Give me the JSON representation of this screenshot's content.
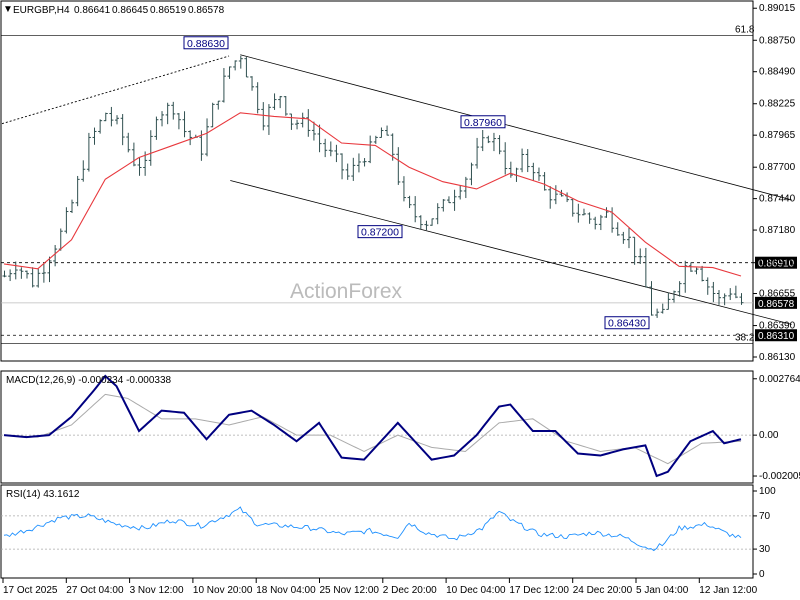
{
  "header": {
    "symbol": "EURGBP,H4",
    "open": "0.86641",
    "high": "0.86645",
    "low": "0.86519",
    "close": "0.86578"
  },
  "watermark": "ActionForex",
  "colors": {
    "candle": "#2f4f4f",
    "ma": "#e8383d",
    "macd": "#000080",
    "signal": "#aaaaaa",
    "rsi": "#1e90ff",
    "label_border": "#000080"
  },
  "chart_data": [
    {
      "type": "candlestick",
      "panel": "price",
      "symbol": "EURGBP,H4",
      "ylim": [
        0.8613,
        0.8905
      ],
      "y_ticks": [
        "0.89015",
        "0.88750",
        "0.88490",
        "0.88225",
        "0.87965",
        "0.87700",
        "0.87440",
        "0.87180",
        "0.86910",
        "0.86655",
        "0.86390",
        "0.86130"
      ],
      "x_ticks": [
        "17 Oct 2025",
        "27 Oct 04:00",
        "3 Nov 12:00",
        "10 Nov 20:00",
        "18 Nov 04:00",
        "25 Nov 12:00",
        "2 Dec 20:00",
        "10 Dec 04:00",
        "17 Dec 12:00",
        "24 Dec 20:00",
        "5 Jan 04:00",
        "12 Jan 12:00"
      ],
      "series_path": [
        [
          0,
          0.868
        ],
        [
          2,
          0.869
        ],
        [
          5,
          0.8675
        ],
        [
          7,
          0.8688
        ],
        [
          10,
          0.8715
        ],
        [
          12,
          0.874
        ],
        [
          15,
          0.879
        ],
        [
          18,
          0.8815
        ],
        [
          20,
          0.8805
        ],
        [
          23,
          0.8775
        ],
        [
          25,
          0.877
        ],
        [
          27,
          0.8815
        ],
        [
          30,
          0.882
        ],
        [
          32,
          0.88
        ],
        [
          35,
          0.8785
        ],
        [
          37,
          0.8818
        ],
        [
          40,
          0.8853
        ],
        [
          42,
          0.8863
        ],
        [
          44,
          0.8835
        ],
        [
          46,
          0.881
        ],
        [
          49,
          0.883
        ],
        [
          51,
          0.8808
        ],
        [
          54,
          0.8805
        ],
        [
          56,
          0.879
        ],
        [
          59,
          0.8775
        ],
        [
          61,
          0.8762
        ],
        [
          63,
          0.8775
        ],
        [
          65,
          0.8785
        ],
        [
          67,
          0.88
        ],
        [
          69,
          0.8782
        ],
        [
          71,
          0.874
        ],
        [
          73,
          0.873
        ],
        [
          75,
          0.8725
        ],
        [
          78,
          0.8738
        ],
        [
          80,
          0.875
        ],
        [
          82,
          0.8762
        ],
        [
          84,
          0.8782
        ],
        [
          86,
          0.8796
        ],
        [
          88,
          0.8786
        ],
        [
          90,
          0.876
        ],
        [
          92,
          0.8775
        ],
        [
          94,
          0.877
        ],
        [
          96,
          0.875
        ],
        [
          99,
          0.8742
        ],
        [
          101,
          0.8735
        ],
        [
          103,
          0.873
        ],
        [
          105,
          0.8725
        ],
        [
          107,
          0.8731
        ],
        [
          109,
          0.872
        ],
        [
          111,
          0.871
        ],
        [
          113,
          0.869
        ],
        [
          115,
          0.865
        ],
        [
          117,
          0.8647
        ],
        [
          119,
          0.867
        ],
        [
          121,
          0.8688
        ],
        [
          123,
          0.869
        ],
        [
          125,
          0.8672
        ],
        [
          127,
          0.866
        ],
        [
          129,
          0.8668
        ],
        [
          131,
          0.8658
        ]
      ],
      "moving_average": [
        [
          0,
          0.869
        ],
        [
          6,
          0.8686
        ],
        [
          12,
          0.871
        ],
        [
          18,
          0.876
        ],
        [
          24,
          0.8778
        ],
        [
          30,
          0.8788
        ],
        [
          36,
          0.8798
        ],
        [
          42,
          0.8815
        ],
        [
          48,
          0.8812
        ],
        [
          54,
          0.881
        ],
        [
          60,
          0.879
        ],
        [
          66,
          0.8788
        ],
        [
          72,
          0.877
        ],
        [
          78,
          0.8758
        ],
        [
          84,
          0.8752
        ],
        [
          90,
          0.8765
        ],
        [
          96,
          0.8756
        ],
        [
          102,
          0.8742
        ],
        [
          108,
          0.8733
        ],
        [
          114,
          0.8708
        ],
        [
          120,
          0.8688
        ],
        [
          126,
          0.8687
        ],
        [
          131,
          0.868
        ]
      ],
      "annotations": [
        {
          "label": "0.88630",
          "value": 0.8863
        },
        {
          "label": "0.87960",
          "value": 0.8796
        },
        {
          "label": "0.87200",
          "value": 0.872
        },
        {
          "label": "0.86430",
          "value": 0.8643
        }
      ],
      "fib_levels": [
        {
          "label": "61.8",
          "value": 0.8879
        },
        {
          "label": "38.2",
          "value": 0.8624
        }
      ],
      "horizontal_levels": [
        {
          "label": "0.86910",
          "value": 0.8691
        },
        {
          "label": "0.86310",
          "value": 0.8631
        }
      ],
      "current_price": {
        "label": "0.86578",
        "value": 0.86578
      },
      "channel": {
        "upper": [
          [
            42,
            0.8863
          ],
          [
            140,
            0.8743
          ]
        ],
        "lower": [
          [
            42,
            0.8758
          ],
          [
            140,
            0.864
          ]
        ]
      }
    },
    {
      "type": "line",
      "panel": "macd",
      "title": "MACD(12,26,9) -0.000234 -0.000338",
      "ylim": [
        -0.0022,
        0.0029
      ],
      "y_ticks": [
        "0.002764",
        "0.00",
        "-0.002005"
      ],
      "series": [
        {
          "name": "macd",
          "values": [
            [
              0,
              0.0
            ],
            [
              4,
              -0.0001
            ],
            [
              8,
              0.0
            ],
            [
              12,
              0.0009
            ],
            [
              16,
              0.0022
            ],
            [
              18,
              0.0029
            ],
            [
              20,
              0.0024
            ],
            [
              24,
              0.0002
            ],
            [
              28,
              0.0012
            ],
            [
              32,
              0.0011
            ],
            [
              36,
              -0.0002
            ],
            [
              40,
              0.001
            ],
            [
              44,
              0.0012
            ],
            [
              48,
              0.0005
            ],
            [
              52,
              -0.0003
            ],
            [
              56,
              0.0006
            ],
            [
              60,
              -0.0011
            ],
            [
              64,
              -0.0012
            ],
            [
              68,
              0.0
            ],
            [
              70,
              0.0006
            ],
            [
              72,
              0.0
            ],
            [
              76,
              -0.0012
            ],
            [
              80,
              -0.001
            ],
            [
              84,
              0.0
            ],
            [
              88,
              0.0014
            ],
            [
              90,
              0.0015
            ],
            [
              94,
              0.0002
            ],
            [
              98,
              0.0002
            ],
            [
              102,
              -0.0009
            ],
            [
              106,
              -0.001
            ],
            [
              110,
              -0.0007
            ],
            [
              114,
              -0.0005
            ],
            [
              116,
              -0.002
            ],
            [
              118,
              -0.0018
            ],
            [
              122,
              -0.0003
            ],
            [
              126,
              0.0002
            ],
            [
              128,
              -0.0004
            ],
            [
              131,
              -0.0002
            ]
          ]
        },
        {
          "name": "signal",
          "values": [
            [
              0,
              0.0
            ],
            [
              6,
              -0.0001
            ],
            [
              12,
              0.0005
            ],
            [
              18,
              0.002
            ],
            [
              22,
              0.0018
            ],
            [
              28,
              0.0008
            ],
            [
              34,
              0.0008
            ],
            [
              40,
              0.0005
            ],
            [
              46,
              0.0009
            ],
            [
              52,
              0.0
            ],
            [
              58,
              0.0
            ],
            [
              64,
              -0.0008
            ],
            [
              70,
              0.0
            ],
            [
              76,
              -0.0006
            ],
            [
              82,
              -0.0008
            ],
            [
              88,
              0.0006
            ],
            [
              94,
              0.0008
            ],
            [
              100,
              -0.0003
            ],
            [
              106,
              -0.0008
            ],
            [
              112,
              -0.0006
            ],
            [
              118,
              -0.0014
            ],
            [
              124,
              -0.0004
            ],
            [
              131,
              -0.0003
            ]
          ]
        }
      ]
    },
    {
      "type": "line",
      "panel": "rsi",
      "title": "RSI(14) 43.1612",
      "ylim": [
        0,
        100
      ],
      "y_ticks": [
        "100",
        "70",
        "30",
        "0"
      ],
      "series": [
        {
          "name": "rsi",
          "values": [
            [
              0,
              45
            ],
            [
              5,
              55
            ],
            [
              10,
              68
            ],
            [
              15,
              70
            ],
            [
              20,
              60
            ],
            [
              25,
              55
            ],
            [
              30,
              65
            ],
            [
              35,
              58
            ],
            [
              40,
              72
            ],
            [
              42,
              78
            ],
            [
              45,
              60
            ],
            [
              50,
              58
            ],
            [
              55,
              55
            ],
            [
              60,
              48
            ],
            [
              65,
              52
            ],
            [
              70,
              45
            ],
            [
              72,
              62
            ],
            [
              75,
              50
            ],
            [
              80,
              42
            ],
            [
              85,
              55
            ],
            [
              88,
              75
            ],
            [
              90,
              65
            ],
            [
              95,
              48
            ],
            [
              100,
              45
            ],
            [
              105,
              50
            ],
            [
              110,
              45
            ],
            [
              115,
              30
            ],
            [
              117,
              35
            ],
            [
              120,
              55
            ],
            [
              125,
              60
            ],
            [
              128,
              50
            ],
            [
              131,
              43
            ]
          ]
        }
      ]
    }
  ]
}
